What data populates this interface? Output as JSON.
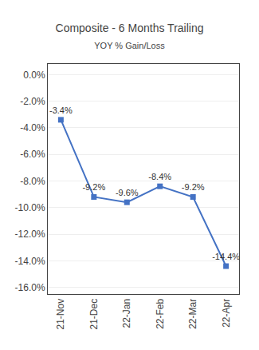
{
  "chart_data": {
    "type": "line",
    "title": "Composite - 6 Months Trailing",
    "subtitle": "YOY % Gain/Loss",
    "categories": [
      "21-Nov",
      "21-Dec",
      "22-Jan",
      "22-Feb",
      "22-Mar",
      "22-Apr"
    ],
    "values": [
      -3.4,
      -9.2,
      -9.6,
      -8.4,
      -9.2,
      -14.4
    ],
    "value_labels": [
      "-3.4%",
      "-9.2%",
      "-9.6%",
      "-8.4%",
      "-9.2%",
      "-14.4%"
    ],
    "data_labels": true,
    "color": "#4472C4",
    "marker": "square",
    "line_style": "solid",
    "ylim": [
      -16.5,
      0.8
    ],
    "yticks": [
      {
        "value": 0.0,
        "label": "0.0%"
      },
      {
        "value": -2.0,
        "label": "-2.0%"
      },
      {
        "value": -4.0,
        "label": "-4.0%"
      },
      {
        "value": -6.0,
        "label": "-6.0%"
      },
      {
        "value": -8.0,
        "label": "-8.0%"
      },
      {
        "value": -10.0,
        "label": "-10.0%"
      },
      {
        "value": -12.0,
        "label": "-12.0%"
      },
      {
        "value": -14.0,
        "label": "-14.0%"
      },
      {
        "value": -16.0,
        "label": "-16.0%"
      }
    ],
    "grid": true
  }
}
